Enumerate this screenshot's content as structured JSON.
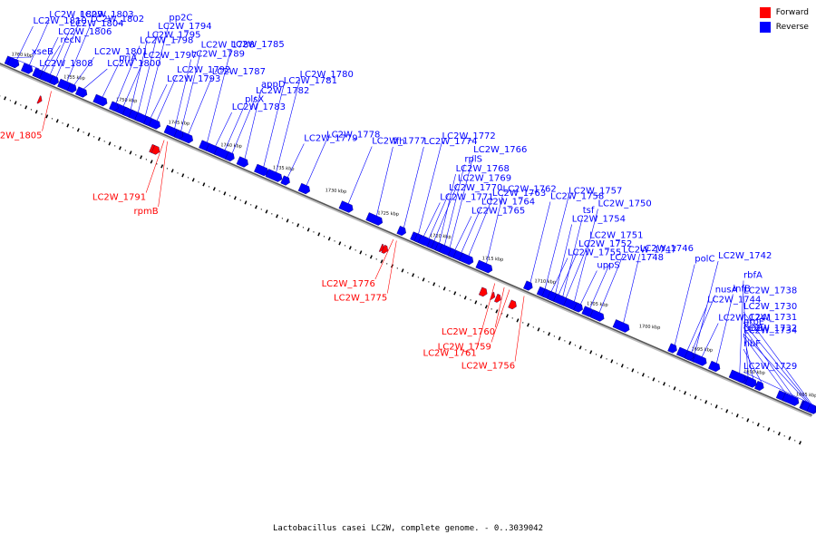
{
  "colors": {
    "forward": "#ff0000",
    "reverse": "#0000ff",
    "backbone": "#555555"
  },
  "legend": {
    "forward_label": "Forward",
    "reverse_label": "Reverse"
  },
  "caption": "Lactobacillus casei LC2W, complete genome. - 0..3039042",
  "track": {
    "start_kbp": 1761,
    "end_kbp": 1683
  },
  "ticks": [
    {
      "kbp": 1760,
      "label": "1760 kbp"
    },
    {
      "kbp": 1755,
      "label": "1755 kbp"
    },
    {
      "kbp": 1750,
      "label": "1750 kbp"
    },
    {
      "kbp": 1745,
      "label": "1745 kbp"
    },
    {
      "kbp": 1740,
      "label": "1740 kbp"
    },
    {
      "kbp": 1735,
      "label": "1735 kbp"
    },
    {
      "kbp": 1730,
      "label": "1730 kbp"
    },
    {
      "kbp": 1725,
      "label": "1725 kbp"
    },
    {
      "kbp": 1720,
      "label": "1720 kbp"
    },
    {
      "kbp": 1715,
      "label": "1715 kbp"
    },
    {
      "kbp": 1710,
      "label": "1710 kbp"
    },
    {
      "kbp": 1705,
      "label": "1705 kbp"
    },
    {
      "kbp": 1700,
      "label": "1700 kbp"
    },
    {
      "kbp": 1695,
      "label": "1695 kbp"
    },
    {
      "kbp": 1690,
      "label": "1690 kbp"
    },
    {
      "kbp": 1685,
      "label": "1685 kbp"
    }
  ],
  "reverse_genes": [
    {
      "label": "LC2W_1810",
      "kbp": 1759.4
    },
    {
      "label": "LC2W_1809",
      "kbp": 1758.2
    },
    {
      "label": "LC2W_1802",
      "kbp": 1754.6
    },
    {
      "label": "recN",
      "kbp": 1756.8
    },
    {
      "label": "LC2W_1801",
      "kbp": 1753.9
    },
    {
      "label": "LC2W_1800",
      "kbp": 1753.0
    },
    {
      "label": "priA",
      "kbp": 1751.2
    },
    {
      "label": "LC2W_1797",
      "kbp": 1749.2
    },
    {
      "label": "LC2W_1798",
      "kbp": 1749.9
    },
    {
      "label": "LC2W_1795",
      "kbp": 1748.5
    },
    {
      "label": "LC2W_1794",
      "kbp": 1747.8
    },
    {
      "label": "pp2C",
      "kbp": 1747.1
    },
    {
      "label": "LC2W_1793",
      "kbp": 1746.6
    },
    {
      "label": "LC2W_1792",
      "kbp": 1746.0
    },
    {
      "label": "LC2W_1787",
      "kbp": 1743.0
    },
    {
      "label": "LC2W_1789",
      "kbp": 1744.3
    },
    {
      "label": "LC2W_1788",
      "kbp": 1743.7
    },
    {
      "label": "LC2W_1785",
      "kbp": 1741.2
    },
    {
      "label": "LC2W_1783",
      "kbp": 1740.4
    },
    {
      "label": "plsX",
      "kbp": 1739.5
    },
    {
      "label": "LC2W_1782",
      "kbp": 1738.8
    },
    {
      "label": "appD",
      "kbp": 1737.6
    },
    {
      "label": "LC2W_1781",
      "kbp": 1735.8
    },
    {
      "label": "LC2W_1780",
      "kbp": 1734.6
    },
    {
      "label": "LC2W_1779",
      "kbp": 1733.5
    },
    {
      "label": "LC2W_1778",
      "kbp": 1731.7
    },
    {
      "label": "LC2W_1777",
      "kbp": 1727.7
    },
    {
      "label": "ffh",
      "kbp": 1725.0
    },
    {
      "label": "LC2W_1774",
      "kbp": 1722.4
    },
    {
      "label": "LC2W_1772",
      "kbp": 1721.0
    },
    {
      "label": "LC2W_1771",
      "kbp": 1720.5
    },
    {
      "label": "LC2W_1770",
      "kbp": 1720.0
    },
    {
      "label": "LC2W_1769",
      "kbp": 1719.5
    },
    {
      "label": "LC2W_1768",
      "kbp": 1719.0
    },
    {
      "label": "rplS",
      "kbp": 1718.5
    },
    {
      "label": "LC2W_1766",
      "kbp": 1718.0
    },
    {
      "label": "LC2W_1765",
      "kbp": 1717.5
    },
    {
      "label": "LC2W_1764",
      "kbp": 1716.9
    },
    {
      "label": "LC2W_1763",
      "kbp": 1716.2
    },
    {
      "label": "LC2W_1762",
      "kbp": 1714.5
    },
    {
      "label": "LC2W_1758",
      "kbp": 1710.3
    },
    {
      "label": "LC2W_1757",
      "kbp": 1708.9
    },
    {
      "label": "LC2W_1755",
      "kbp": 1708.3
    },
    {
      "label": "LC2W_1752",
      "kbp": 1707.6
    },
    {
      "label": "LC2W_1751",
      "kbp": 1706.9
    },
    {
      "label": "LC2W_1754",
      "kbp": 1707.9
    },
    {
      "label": "tsf",
      "kbp": 1707.2
    },
    {
      "label": "LC2W_1750",
      "kbp": 1706.1
    },
    {
      "label": "uppS",
      "kbp": 1705.5
    },
    {
      "label": "LC2W_1748",
      "kbp": 1704.6
    },
    {
      "label": "LC2W_1747",
      "kbp": 1703.7
    },
    {
      "label": "LC2W_1746",
      "kbp": 1701.4
    },
    {
      "label": "polC",
      "kbp": 1696.5
    },
    {
      "label": "LC2W_1742",
      "kbp": 1694.6
    },
    {
      "label": "LC2W_1741",
      "kbp": 1693.9
    },
    {
      "label": "LC2W_1744",
      "kbp": 1695.3
    },
    {
      "label": "nusA",
      "kbp": 1694.9
    },
    {
      "label": "infB",
      "kbp": 1692.5
    },
    {
      "label": "LC2W_1738",
      "kbp": 1689.5
    },
    {
      "label": "rbfA",
      "kbp": 1690.3
    },
    {
      "label": "ribF",
      "kbp": 1688.2
    },
    {
      "label": "truB",
      "kbp": 1689.0
    },
    {
      "label": "LC2W_1734",
      "kbp": 1685.9
    },
    {
      "label": "grpE",
      "kbp": 1685.2
    },
    {
      "label": "xseB",
      "kbp": 1759.9
    },
    {
      "label": "LC2W_1808",
      "kbp": 1759.5
    },
    {
      "label": "LC2W_1806",
      "kbp": 1757.0
    },
    {
      "label": "LC2W_1804",
      "kbp": 1756.2
    },
    {
      "label": "LC2W_1803",
      "kbp": 1755.6
    },
    {
      "label": "LC2W_1732",
      "kbp": 1683.8
    },
    {
      "label": "LC2W_1731",
      "kbp": 1683.6
    },
    {
      "label": "LC2W_1730",
      "kbp": 1683.4
    },
    {
      "label": "LC2W_1729",
      "kbp": 1683.2
    }
  ],
  "forward_genes": [
    {
      "label": "LC2W_1805",
      "kbp": 1756.1
    },
    {
      "label": "LC2W_1791",
      "kbp": 1745.3
    },
    {
      "label": "rpmB",
      "kbp": 1745.0
    },
    {
      "label": "LC2W_1776",
      "kbp": 1723.4
    },
    {
      "label": "LC2W_1775",
      "kbp": 1723.1
    },
    {
      "label": "LC2W_1761",
      "kbp": 1713.7
    },
    {
      "label": "LC2W_1760",
      "kbp": 1712.8
    },
    {
      "label": "LC2W_1759",
      "kbp": 1712.3
    },
    {
      "label": "LC2W_1756",
      "kbp": 1710.9
    }
  ]
}
